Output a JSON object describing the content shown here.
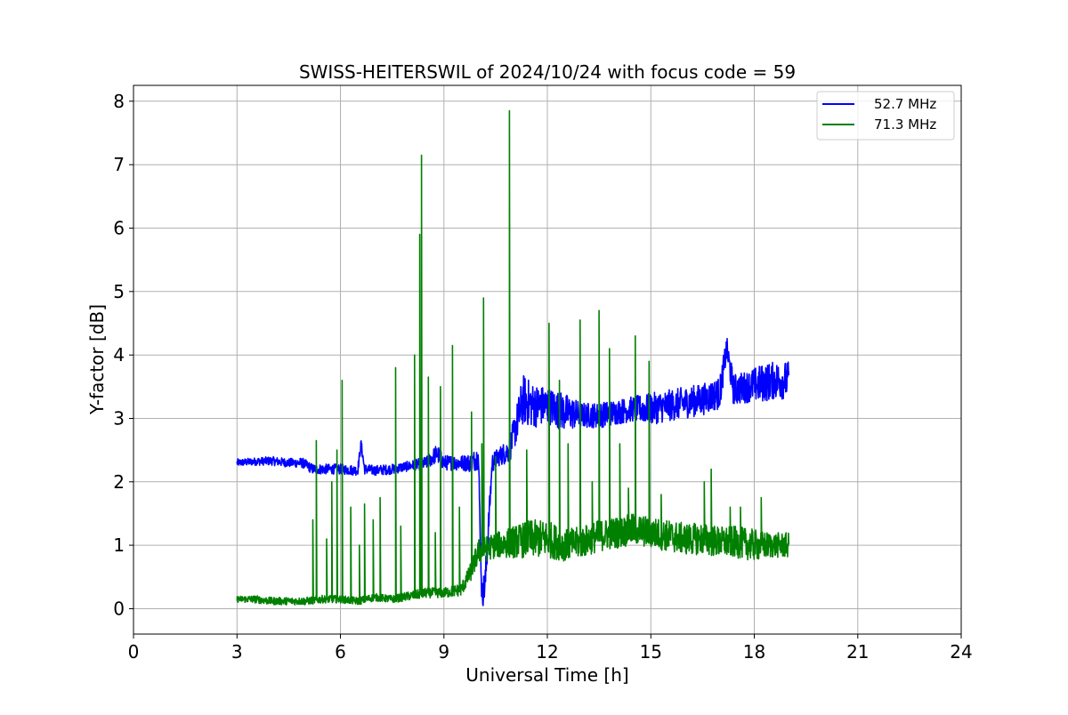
{
  "chart_data": {
    "type": "line",
    "title": "SWISS-HEITERSWIL of 2024/10/24 with focus code = 59",
    "xlabel": "Universal Time [h]",
    "ylabel": "Y-factor [dB]",
    "xlim": [
      0,
      24
    ],
    "ylim": [
      -0.4,
      8.25
    ],
    "x_ticks": [
      0,
      3,
      6,
      9,
      12,
      15,
      18,
      21,
      24
    ],
    "y_ticks": [
      0,
      1,
      2,
      3,
      4,
      5,
      6,
      7,
      8
    ],
    "grid": true,
    "legend_position": "top-right",
    "series": [
      {
        "name": "52.7 MHz",
        "color": "#0000ff",
        "x": [
          3.0,
          3.5,
          4.0,
          4.5,
          4.9,
          5.2,
          5.6,
          6.0,
          6.5,
          6.6,
          6.7,
          7.0,
          7.5,
          8.0,
          8.5,
          8.8,
          9.0,
          9.5,
          9.8,
          10.0,
          10.1,
          10.2,
          10.4,
          10.6,
          10.9,
          11.0,
          11.3,
          11.6,
          12.0,
          12.5,
          13.0,
          13.5,
          14.0,
          14.5,
          15.0,
          15.5,
          16.0,
          16.5,
          17.0,
          17.2,
          17.4,
          17.8,
          18.2,
          18.6,
          19.0
        ],
        "y": [
          2.3,
          2.32,
          2.33,
          2.3,
          2.3,
          2.2,
          2.2,
          2.2,
          2.18,
          2.6,
          2.2,
          2.18,
          2.2,
          2.25,
          2.3,
          2.45,
          2.3,
          2.3,
          2.3,
          2.4,
          0.2,
          0.4,
          2.3,
          2.4,
          2.5,
          2.7,
          3.3,
          3.2,
          3.2,
          3.1,
          3.05,
          3.05,
          3.1,
          3.15,
          3.15,
          3.2,
          3.25,
          3.3,
          3.4,
          4.1,
          3.45,
          3.5,
          3.55,
          3.6,
          3.6
        ],
        "noise_band": [
          0.06,
          0.06,
          0.07,
          0.07,
          0.08,
          0.08,
          0.08,
          0.08,
          0.08,
          0.08,
          0.08,
          0.08,
          0.08,
          0.08,
          0.1,
          0.15,
          0.12,
          0.12,
          0.15,
          0.2,
          0.2,
          0.3,
          0.15,
          0.15,
          0.2,
          0.25,
          0.4,
          0.35,
          0.3,
          0.3,
          0.2,
          0.2,
          0.2,
          0.2,
          0.25,
          0.25,
          0.25,
          0.25,
          0.25,
          0.2,
          0.25,
          0.25,
          0.3,
          0.3,
          0.3
        ]
      },
      {
        "name": "71.3 MHz",
        "color": "#008000",
        "x": [
          3.0,
          3.5,
          4.0,
          4.5,
          5.0,
          5.5,
          6.0,
          6.5,
          7.0,
          7.5,
          8.0,
          8.5,
          9.0,
          9.5,
          9.8,
          10.0,
          10.5,
          11.0,
          11.5,
          12.0,
          12.5,
          13.0,
          13.5,
          14.0,
          14.5,
          15.0,
          15.5,
          16.0,
          16.5,
          17.0,
          17.5,
          18.0,
          18.5,
          19.0
        ],
        "y": [
          0.15,
          0.15,
          0.12,
          0.12,
          0.12,
          0.15,
          0.15,
          0.12,
          0.18,
          0.15,
          0.2,
          0.25,
          0.25,
          0.3,
          0.6,
          0.9,
          1.0,
          1.05,
          1.1,
          1.1,
          1.0,
          1.05,
          1.15,
          1.2,
          1.25,
          1.2,
          1.15,
          1.1,
          1.1,
          1.05,
          1.05,
          1.0,
          1.0,
          1.0
        ],
        "noise_band": [
          0.05,
          0.06,
          0.06,
          0.06,
          0.06,
          0.06,
          0.06,
          0.06,
          0.06,
          0.06,
          0.07,
          0.08,
          0.08,
          0.1,
          0.15,
          0.2,
          0.2,
          0.25,
          0.3,
          0.3,
          0.25,
          0.25,
          0.25,
          0.25,
          0.25,
          0.25,
          0.25,
          0.25,
          0.25,
          0.25,
          0.25,
          0.25,
          0.2,
          0.2
        ],
        "spikes": [
          {
            "x": 5.2,
            "y": 1.4
          },
          {
            "x": 5.3,
            "y": 2.65
          },
          {
            "x": 5.6,
            "y": 1.1
          },
          {
            "x": 5.75,
            "y": 2.0
          },
          {
            "x": 5.9,
            "y": 2.5
          },
          {
            "x": 6.05,
            "y": 3.6
          },
          {
            "x": 6.3,
            "y": 1.6
          },
          {
            "x": 6.55,
            "y": 1.0
          },
          {
            "x": 6.7,
            "y": 1.65
          },
          {
            "x": 6.95,
            "y": 1.4
          },
          {
            "x": 7.15,
            "y": 1.75
          },
          {
            "x": 7.6,
            "y": 3.8
          },
          {
            "x": 7.75,
            "y": 1.3
          },
          {
            "x": 8.15,
            "y": 4.0
          },
          {
            "x": 8.3,
            "y": 5.9
          },
          {
            "x": 8.35,
            "y": 7.15
          },
          {
            "x": 8.55,
            "y": 3.65
          },
          {
            "x": 8.75,
            "y": 1.2
          },
          {
            "x": 8.9,
            "y": 3.5
          },
          {
            "x": 9.25,
            "y": 4.15
          },
          {
            "x": 9.45,
            "y": 1.6
          },
          {
            "x": 9.8,
            "y": 3.1
          },
          {
            "x": 10.1,
            "y": 2.6
          },
          {
            "x": 10.15,
            "y": 4.9
          },
          {
            "x": 10.5,
            "y": 2.4
          },
          {
            "x": 10.9,
            "y": 7.85
          },
          {
            "x": 11.4,
            "y": 2.5
          },
          {
            "x": 12.05,
            "y": 4.5
          },
          {
            "x": 12.35,
            "y": 3.6
          },
          {
            "x": 12.6,
            "y": 2.6
          },
          {
            "x": 12.95,
            "y": 4.55
          },
          {
            "x": 13.3,
            "y": 2.0
          },
          {
            "x": 13.5,
            "y": 4.7
          },
          {
            "x": 13.8,
            "y": 4.1
          },
          {
            "x": 14.1,
            "y": 2.6
          },
          {
            "x": 14.35,
            "y": 1.9
          },
          {
            "x": 14.55,
            "y": 4.3
          },
          {
            "x": 14.95,
            "y": 3.9
          },
          {
            "x": 15.3,
            "y": 1.8
          },
          {
            "x": 16.55,
            "y": 2.0
          },
          {
            "x": 16.75,
            "y": 2.2
          },
          {
            "x": 17.3,
            "y": 1.6
          },
          {
            "x": 17.6,
            "y": 1.6
          },
          {
            "x": 18.2,
            "y": 1.75
          }
        ]
      }
    ]
  }
}
